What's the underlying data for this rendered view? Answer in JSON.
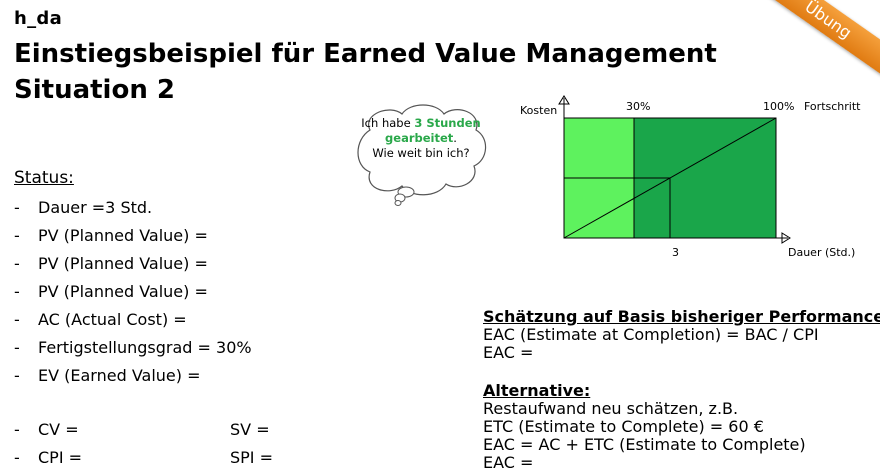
{
  "header": {
    "logo": "h_da",
    "title_line1": "Einstiegsbeispiel für Earned Value Management",
    "title_line2": "Situation 2",
    "badge": "Übung"
  },
  "thought_bubble": {
    "line1_a": "Ich habe ",
    "line1_b": "3 Stunden",
    "line2_a": "gearbeitet",
    "line2_b": ".",
    "line3": "Wie weit bin ich?"
  },
  "chart": {
    "y_axis_label": "Kosten",
    "x_axis_label": "Dauer (Std.)",
    "top_label_30": "30%",
    "top_label_100": "100%",
    "top_label_right": "Fortschritt",
    "tick_label": "3",
    "colors": {
      "light_green": "#5ef25e",
      "dark_green": "#1aa64a"
    }
  },
  "status": {
    "heading": "Status:",
    "items": [
      "Dauer =3 Std.",
      "PV (Planned Value) =",
      "PV (Planned Value) =",
      "PV (Planned Value) =",
      "AC (Actual Cost) =",
      "Fertigstellungsgrad = 30%",
      "EV (Earned Value) ="
    ],
    "cv": "CV =",
    "sv": "SV =",
    "cpi": "CPI =",
    "spi": "SPI ="
  },
  "estimate": {
    "heading": "Schätzung auf Basis bisheriger Performance:",
    "line1": "EAC (Estimate at Completion) = BAC / CPI",
    "line2": "EAC ="
  },
  "alternative": {
    "heading": "Alternative:",
    "line1": "Restaufwand neu schätzen, z.B.",
    "line2": "ETC (Estimate to Complete) = 60 €",
    "line3": "EAC = AC + ETC (Estimate to Complete)",
    "line4": "EAC ="
  }
}
